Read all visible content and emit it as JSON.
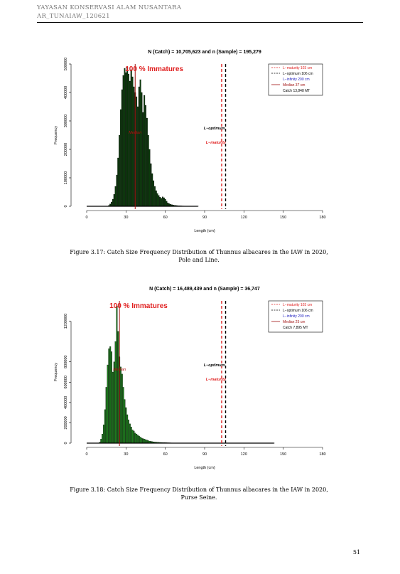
{
  "header": {
    "line1": "YAYASAN KONSERVASI ALAM NUSANTARA",
    "line2": "AR_TUNAIAW_120621"
  },
  "page_number": "51",
  "figures": [
    {
      "caption_line1": "Figure 3.17: Catch Size Frequency Distribution of Thunnus albacares in the IAW in 2020,",
      "caption_line2": "Pole and Line."
    },
    {
      "caption_line1": "Figure 3.18: Catch Size Frequency Distribution of Thunnus albacares in the IAW in 2020,",
      "caption_line2": "Purse Seine."
    }
  ],
  "chart_data": [
    {
      "type": "bar",
      "title": "N (Catch) = 10,705,623 and n (Sample) = 195,279",
      "xlabel": "Length (cm)",
      "ylabel": "Frequency",
      "xlim": [
        0,
        180
      ],
      "ylim": [
        0,
        500000
      ],
      "xticks": [
        "0",
        "30",
        "60",
        "90",
        "120",
        "150",
        "180"
      ],
      "yticks": [
        "0",
        "100000",
        "200000",
        "300000",
        "400000",
        "500000"
      ],
      "bar_color": "#0b3a0b",
      "annotation": "100 % Immatures",
      "median_label": "Median",
      "median_value": 37,
      "l_maturity": 103,
      "l_optimum": 106,
      "l_optimum_label": "L−optimum",
      "l_maturity_label": "L−maturity",
      "legend_position": "top-right",
      "legend": [
        {
          "label": "L−maturity 103 cm",
          "style": "dashed",
          "color": "#e02020"
        },
        {
          "label": "L−optimum 106 cm",
          "style": "dashed",
          "color": "#000000"
        },
        {
          "label": "L−infinity 200 cm",
          "style": "none",
          "color": "#2020c0"
        },
        {
          "label": "Median 37 cm",
          "style": "solid",
          "color": "#a01010"
        },
        {
          "label": "Catch 13,848 MT",
          "style": "none",
          "color": "#000000"
        }
      ],
      "series": [
        {
          "x": [
            17,
            18,
            19,
            20,
            21,
            22,
            23,
            24,
            25,
            26,
            27,
            28,
            29,
            30,
            31,
            32,
            33,
            34,
            35,
            36,
            37,
            38,
            39,
            40,
            41,
            42,
            43,
            44,
            45,
            46,
            47,
            48,
            49,
            50,
            51,
            52,
            53,
            54,
            55,
            56,
            57,
            58,
            59,
            60,
            61,
            62,
            63,
            64,
            65,
            66,
            67,
            68,
            69,
            70,
            71,
            72,
            73,
            74,
            75,
            76,
            77,
            78,
            79,
            80,
            81,
            82,
            83,
            84,
            85
          ],
          "values": [
            3000,
            8000,
            15000,
            25000,
            42000,
            70000,
            110000,
            170000,
            250000,
            340000,
            410000,
            460000,
            485000,
            470000,
            490000,
            465000,
            440000,
            480000,
            455000,
            420000,
            400000,
            385000,
            350000,
            420000,
            445000,
            400000,
            330000,
            390000,
            355000,
            310000,
            250000,
            200000,
            150000,
            115000,
            90000,
            70000,
            55000,
            45000,
            38000,
            32000,
            28000,
            33000,
            30000,
            25000,
            18000,
            12000,
            9000,
            7000,
            5500,
            4500,
            3500,
            3000,
            2500,
            2000,
            1800,
            1500,
            1200,
            1000,
            900,
            800,
            700,
            600,
            500,
            400,
            350,
            300,
            250,
            200,
            150
          ]
        }
      ]
    },
    {
      "type": "bar",
      "title": "N (Catch) = 16,489,439 and n (Sample) = 36,747",
      "xlabel": "Length (cm)",
      "ylabel": "Frequency",
      "xlim": [
        0,
        180
      ],
      "ylim": [
        0,
        1400000
      ],
      "xticks": [
        "0",
        "30",
        "60",
        "90",
        "120",
        "150",
        "180"
      ],
      "yticks": [
        "0",
        "200000",
        "400000",
        "600000",
        "800000",
        "1200000"
      ],
      "ytick_values": [
        0,
        200000,
        400000,
        600000,
        800000,
        1200000
      ],
      "bar_color": "#1d7a1d",
      "annotation": "100 % Immatures",
      "median_label": "Median",
      "median_value": 25,
      "l_maturity": 103,
      "l_optimum": 106,
      "l_optimum_label": "L−optimum",
      "l_maturity_label": "L−maturity",
      "legend_position": "top-right",
      "legend": [
        {
          "label": "L−maturity 103 cm",
          "style": "dashed",
          "color": "#e02020"
        },
        {
          "label": "L−optimum 106 cm",
          "style": "dashed",
          "color": "#000000"
        },
        {
          "label": "L−infinity 200 cm",
          "style": "none",
          "color": "#2020c0"
        },
        {
          "label": "Median 25 cm",
          "style": "solid",
          "color": "#a01010"
        },
        {
          "label": "Catch 7,895 MT",
          "style": "none",
          "color": "#000000"
        }
      ],
      "series": [
        {
          "x": [
            10,
            11,
            12,
            13,
            14,
            15,
            16,
            17,
            18,
            19,
            20,
            21,
            22,
            23,
            24,
            25,
            26,
            27,
            28,
            29,
            30,
            31,
            32,
            33,
            34,
            35,
            36,
            37,
            38,
            39,
            40,
            41,
            42,
            43,
            44,
            45,
            46,
            47,
            48,
            49,
            50,
            51,
            52,
            53,
            54,
            55,
            56,
            57,
            58,
            59,
            60,
            61,
            62,
            63,
            64,
            65,
            66,
            67,
            68,
            69,
            70,
            72,
            75,
            78,
            80,
            85,
            90,
            100,
            110,
            120,
            135,
            143
          ],
          "values": [
            10000,
            40000,
            90000,
            180000,
            330000,
            550000,
            770000,
            930000,
            950000,
            900000,
            700000,
            800000,
            1000000,
            1350000,
            1100000,
            850000,
            750000,
            680000,
            550000,
            430000,
            350000,
            280000,
            230000,
            190000,
            160000,
            130000,
            120000,
            100000,
            90000,
            80000,
            70000,
            60000,
            50000,
            45000,
            40000,
            35000,
            30000,
            25000,
            20000,
            18000,
            15000,
            13000,
            11000,
            10000,
            9000,
            8000,
            7000,
            6500,
            6000,
            5500,
            5000,
            4500,
            4000,
            3500,
            3000,
            2500,
            2000,
            1800,
            1600,
            1400,
            1200,
            1000,
            800,
            600,
            500,
            400,
            300,
            200,
            200,
            150,
            100,
            100
          ]
        }
      ]
    }
  ]
}
